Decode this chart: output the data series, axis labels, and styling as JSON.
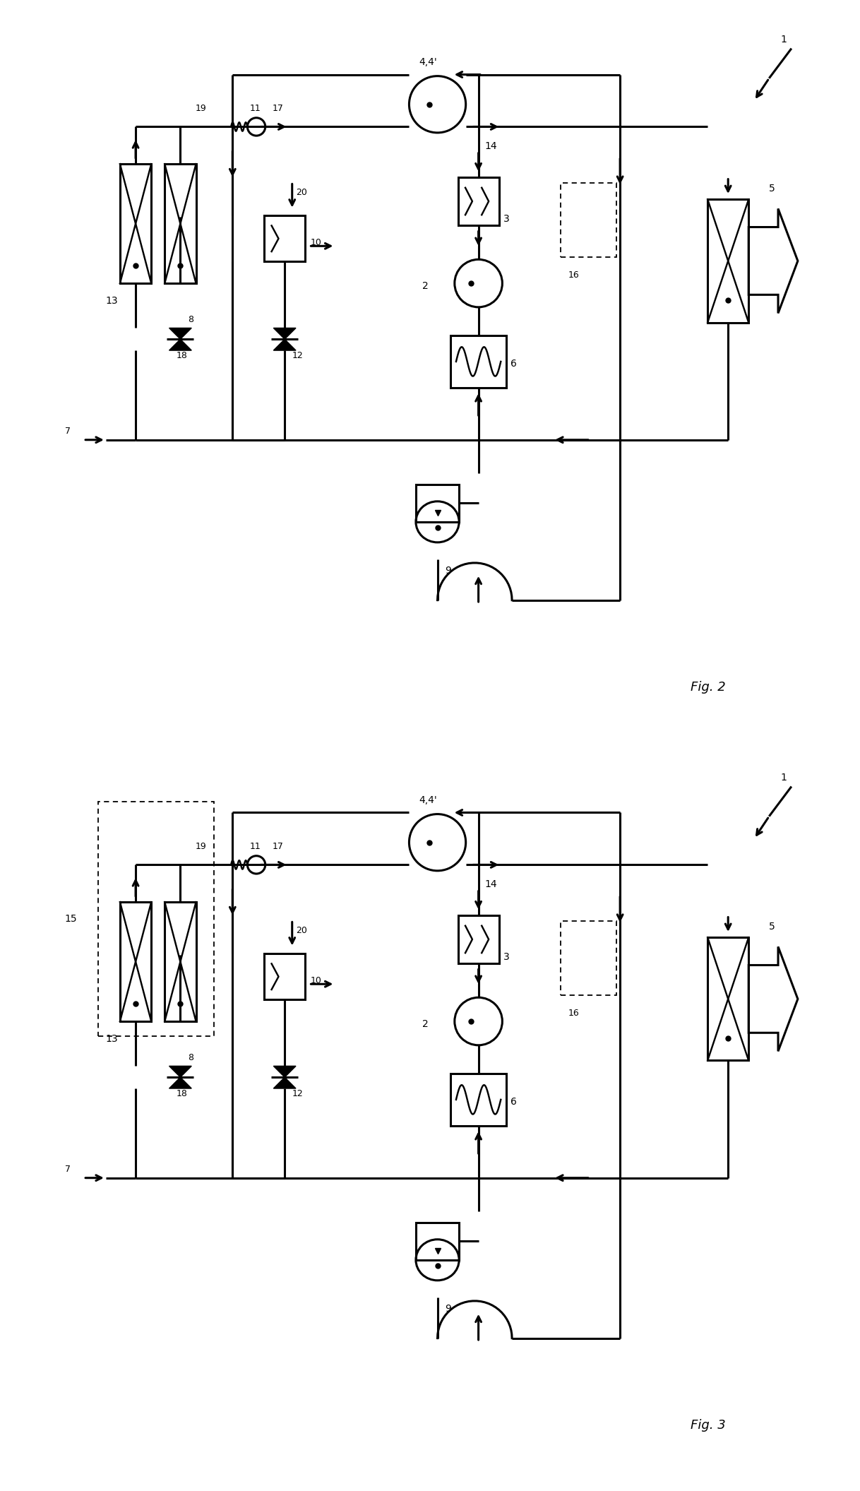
{
  "bg_color": "#ffffff",
  "lc": "#000000",
  "lw": 2.2,
  "thin": 0.9,
  "fig2_label": "Fig. 2",
  "fig3_label": "Fig. 3"
}
